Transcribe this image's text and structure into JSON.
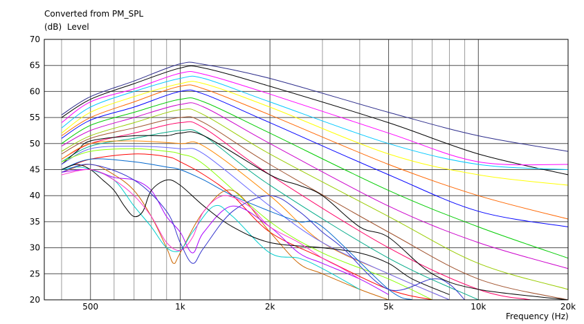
{
  "chart_data": {
    "type": "line",
    "title": "Converted from PM_SPL",
    "ylabel_unit": "(dB)",
    "ylabel": "Level",
    "xlabel": "Frequency",
    "xlabel_unit": "(Hz)",
    "x_scale": "log",
    "xlim": [
      350,
      20000
    ],
    "ylim": [
      20,
      70
    ],
    "grid": true,
    "legend": "none",
    "x_ticks": [
      {
        "v": 500,
        "label": "500"
      },
      {
        "v": 1000,
        "label": "1k"
      },
      {
        "v": 2000,
        "label": "2k"
      },
      {
        "v": 5000,
        "label": "5k"
      },
      {
        "v": 10000,
        "label": "10k"
      },
      {
        "v": 20000,
        "label": "20k"
      }
    ],
    "y_ticks": [
      20,
      25,
      30,
      35,
      40,
      45,
      50,
      55,
      60,
      65,
      70
    ],
    "series": [
      {
        "color": "#2a2a8a",
        "points": [
          [
            400,
            55.5
          ],
          [
            500,
            59
          ],
          [
            700,
            62
          ],
          [
            1000,
            65.3
          ],
          [
            1200,
            65.2
          ],
          [
            2000,
            62.5
          ],
          [
            5000,
            56
          ],
          [
            10000,
            51.5
          ],
          [
            20000,
            48.5
          ]
        ]
      },
      {
        "color": "#000000",
        "points": [
          [
            400,
            55
          ],
          [
            500,
            58.5
          ],
          [
            700,
            61.5
          ],
          [
            1000,
            64.5
          ],
          [
            1200,
            64.5
          ],
          [
            2000,
            61
          ],
          [
            5000,
            54
          ],
          [
            10000,
            48
          ],
          [
            20000,
            44
          ]
        ]
      },
      {
        "color": "#ff00ff",
        "points": [
          [
            400,
            54
          ],
          [
            500,
            58
          ],
          [
            700,
            60.5
          ],
          [
            1000,
            63.5
          ],
          [
            1200,
            63.3
          ],
          [
            2000,
            59.5
          ],
          [
            5000,
            52
          ],
          [
            10000,
            46.5
          ],
          [
            20000,
            46
          ]
        ]
      },
      {
        "color": "#00c8ff",
        "points": [
          [
            400,
            53
          ],
          [
            500,
            57
          ],
          [
            700,
            60
          ],
          [
            1000,
            62.5
          ],
          [
            1200,
            62.5
          ],
          [
            2000,
            58
          ],
          [
            5000,
            50
          ],
          [
            10000,
            46
          ],
          [
            20000,
            45
          ]
        ]
      },
      {
        "color": "#ffff00",
        "points": [
          [
            400,
            52
          ],
          [
            500,
            56
          ],
          [
            700,
            59
          ],
          [
            1000,
            61.5
          ],
          [
            1200,
            61.5
          ],
          [
            2000,
            57
          ],
          [
            5000,
            48
          ],
          [
            10000,
            44
          ],
          [
            20000,
            42
          ]
        ]
      },
      {
        "color": "#ff6600",
        "points": [
          [
            400,
            51.5
          ],
          [
            500,
            55
          ],
          [
            700,
            58
          ],
          [
            1000,
            61
          ],
          [
            1200,
            60.5
          ],
          [
            2000,
            55.5
          ],
          [
            5000,
            46
          ],
          [
            10000,
            40
          ],
          [
            20000,
            35.5
          ]
        ]
      },
      {
        "color": "#0000ff",
        "points": [
          [
            400,
            51
          ],
          [
            500,
            54.5
          ],
          [
            700,
            57
          ],
          [
            1000,
            60
          ],
          [
            1200,
            59.5
          ],
          [
            2000,
            54
          ],
          [
            5000,
            44
          ],
          [
            10000,
            37
          ],
          [
            20000,
            34
          ]
        ]
      },
      {
        "color": "#00cc00",
        "points": [
          [
            400,
            50
          ],
          [
            500,
            53.5
          ],
          [
            700,
            56
          ],
          [
            1000,
            58.5
          ],
          [
            1200,
            58
          ],
          [
            2000,
            52
          ],
          [
            5000,
            41
          ],
          [
            10000,
            34
          ],
          [
            20000,
            28
          ]
        ]
      },
      {
        "color": "#cc00cc",
        "points": [
          [
            400,
            49.5
          ],
          [
            500,
            52.5
          ],
          [
            700,
            55
          ],
          [
            1000,
            57.5
          ],
          [
            1200,
            57
          ],
          [
            2000,
            50
          ],
          [
            5000,
            38
          ],
          [
            10000,
            31
          ],
          [
            20000,
            26
          ]
        ]
      },
      {
        "color": "#99cc00",
        "points": [
          [
            400,
            48.5
          ],
          [
            500,
            51.5
          ],
          [
            700,
            54
          ],
          [
            1000,
            56.5
          ],
          [
            1200,
            55.5
          ],
          [
            2000,
            48
          ],
          [
            5000,
            36
          ],
          [
            10000,
            27
          ],
          [
            20000,
            22
          ]
        ]
      },
      {
        "color": "#a0522d",
        "points": [
          [
            400,
            48
          ],
          [
            500,
            51
          ],
          [
            700,
            53
          ],
          [
            1000,
            55
          ],
          [
            1200,
            54
          ],
          [
            2000,
            46
          ],
          [
            5000,
            33
          ],
          [
            10000,
            24
          ],
          [
            20000,
            20
          ]
        ]
      },
      {
        "color": "#ff0066",
        "points": [
          [
            400,
            47
          ],
          [
            500,
            50
          ],
          [
            700,
            52
          ],
          [
            1000,
            54
          ],
          [
            1200,
            53
          ],
          [
            2000,
            44
          ],
          [
            5000,
            30
          ],
          [
            10000,
            22
          ],
          [
            15000,
            20
          ]
        ]
      },
      {
        "color": "#00aa88",
        "points": [
          [
            400,
            46.5
          ],
          [
            500,
            49.5
          ],
          [
            700,
            51
          ],
          [
            1000,
            52.5
          ],
          [
            1200,
            51.5
          ],
          [
            2000,
            42
          ],
          [
            5000,
            28
          ],
          [
            10000,
            20
          ]
        ]
      },
      {
        "color": "#000000",
        "points": [
          [
            400,
            46
          ],
          [
            450,
            48.5
          ],
          [
            500,
            50.5
          ],
          [
            700,
            51.5
          ],
          [
            900,
            51.5
          ],
          [
            1000,
            52
          ],
          [
            1200,
            51.5
          ],
          [
            2000,
            44
          ],
          [
            2500,
            42
          ],
          [
            3000,
            40
          ],
          [
            4000,
            34
          ],
          [
            5000,
            32
          ],
          [
            7000,
            25
          ],
          [
            10000,
            22
          ],
          [
            20000,
            20
          ]
        ]
      },
      {
        "color": "#ff8800",
        "points": [
          [
            400,
            47
          ],
          [
            500,
            50
          ],
          [
            700,
            50.5
          ],
          [
            1000,
            50
          ],
          [
            1200,
            49.5
          ],
          [
            2000,
            40
          ],
          [
            3000,
            31
          ],
          [
            5000,
            25
          ],
          [
            8000,
            20
          ]
        ]
      },
      {
        "color": "#6666ff",
        "points": [
          [
            400,
            46
          ],
          [
            500,
            49
          ],
          [
            700,
            49.5
          ],
          [
            1000,
            49
          ],
          [
            1200,
            48
          ],
          [
            2000,
            38
          ],
          [
            3000,
            31
          ],
          [
            5000,
            25
          ],
          [
            8000,
            20
          ]
        ]
      },
      {
        "color": "#88ff00",
        "points": [
          [
            400,
            46.5
          ],
          [
            500,
            48.5
          ],
          [
            700,
            49
          ],
          [
            900,
            48.5
          ],
          [
            1000,
            48
          ],
          [
            1200,
            46
          ],
          [
            2000,
            35
          ],
          [
            3000,
            29
          ],
          [
            5000,
            24
          ],
          [
            7000,
            20
          ]
        ]
      },
      {
        "color": "#ff0000",
        "points": [
          [
            400,
            45
          ],
          [
            500,
            47
          ],
          [
            700,
            48
          ],
          [
            900,
            47.5
          ],
          [
            1000,
            46.5
          ],
          [
            1200,
            44
          ],
          [
            1500,
            40
          ],
          [
            2000,
            33
          ],
          [
            3000,
            28
          ],
          [
            5000,
            22
          ],
          [
            7000,
            20
          ]
        ]
      },
      {
        "color": "#0066cc",
        "points": [
          [
            400,
            45
          ],
          [
            500,
            47
          ],
          [
            700,
            46.5
          ],
          [
            900,
            45.5
          ],
          [
            1000,
            45
          ],
          [
            1200,
            43
          ],
          [
            1500,
            40
          ],
          [
            2000,
            37
          ],
          [
            2500,
            35
          ],
          [
            3000,
            34
          ],
          [
            5000,
            22
          ],
          [
            6000,
            20
          ]
        ]
      },
      {
        "color": "#cc6600",
        "points": [
          [
            400,
            44.5
          ],
          [
            500,
            46
          ],
          [
            600,
            44
          ],
          [
            700,
            41
          ],
          [
            800,
            36
          ],
          [
            900,
            30
          ],
          [
            950,
            27
          ],
          [
            1000,
            29
          ],
          [
            1200,
            37
          ],
          [
            1500,
            41
          ],
          [
            2000,
            33
          ],
          [
            2500,
            27
          ],
          [
            3000,
            25
          ],
          [
            4000,
            22
          ],
          [
            5000,
            20
          ]
        ]
      },
      {
        "color": "#aa00ff",
        "points": [
          [
            400,
            44.5
          ],
          [
            500,
            45
          ],
          [
            600,
            43.5
          ],
          [
            700,
            43
          ],
          [
            800,
            41
          ],
          [
            900,
            36
          ],
          [
            1000,
            33
          ],
          [
            1100,
            29
          ],
          [
            1200,
            33
          ],
          [
            1500,
            38
          ],
          [
            2000,
            34
          ],
          [
            2500,
            29
          ],
          [
            3000,
            27
          ],
          [
            4000,
            24
          ],
          [
            5000,
            21
          ]
        ]
      },
      {
        "color": "#00cccc",
        "points": [
          [
            400,
            45
          ],
          [
            450,
            45.5
          ],
          [
            500,
            45
          ],
          [
            600,
            43
          ],
          [
            700,
            38
          ],
          [
            800,
            34
          ],
          [
            900,
            30
          ],
          [
            1000,
            29.5
          ],
          [
            1100,
            33
          ],
          [
            1300,
            38
          ],
          [
            1500,
            36
          ],
          [
            2000,
            29
          ],
          [
            2500,
            28
          ],
          [
            3000,
            26
          ],
          [
            4000,
            22
          ]
        ]
      },
      {
        "color": "#000000",
        "points": [
          [
            400,
            45
          ],
          [
            450,
            46
          ],
          [
            500,
            45
          ],
          [
            550,
            43
          ],
          [
            600,
            41
          ],
          [
            650,
            38
          ],
          [
            700,
            36
          ],
          [
            750,
            37
          ],
          [
            800,
            41
          ],
          [
            900,
            43
          ],
          [
            1000,
            42
          ],
          [
            1200,
            38
          ],
          [
            1500,
            34
          ],
          [
            2000,
            31
          ],
          [
            3000,
            30
          ],
          [
            4000,
            29
          ],
          [
            5000,
            27
          ],
          [
            6000,
            24
          ],
          [
            8000,
            21
          ]
        ]
      },
      {
        "color": "#ff33cc",
        "points": [
          [
            400,
            44
          ],
          [
            500,
            45
          ],
          [
            600,
            43
          ],
          [
            700,
            40
          ],
          [
            800,
            36
          ],
          [
            900,
            31
          ],
          [
            1000,
            29.5
          ],
          [
            1100,
            32
          ],
          [
            1200,
            37
          ],
          [
            1400,
            40
          ],
          [
            1700,
            38
          ],
          [
            2000,
            34
          ],
          [
            2500,
            31
          ],
          [
            3000,
            28
          ],
          [
            3500,
            26
          ],
          [
            4000,
            24
          ]
        ]
      },
      {
        "color": "#3333cc",
        "points": [
          [
            400,
            44.5
          ],
          [
            500,
            46
          ],
          [
            700,
            43
          ],
          [
            900,
            37
          ],
          [
            1000,
            31
          ],
          [
            1100,
            27
          ],
          [
            1200,
            30
          ],
          [
            1500,
            37
          ],
          [
            2000,
            40
          ],
          [
            2500,
            37
          ],
          [
            3000,
            33
          ],
          [
            3500,
            30
          ],
          [
            5000,
            22
          ],
          [
            7000,
            24
          ],
          [
            8000,
            23
          ],
          [
            9000,
            20
          ]
        ]
      }
    ]
  }
}
